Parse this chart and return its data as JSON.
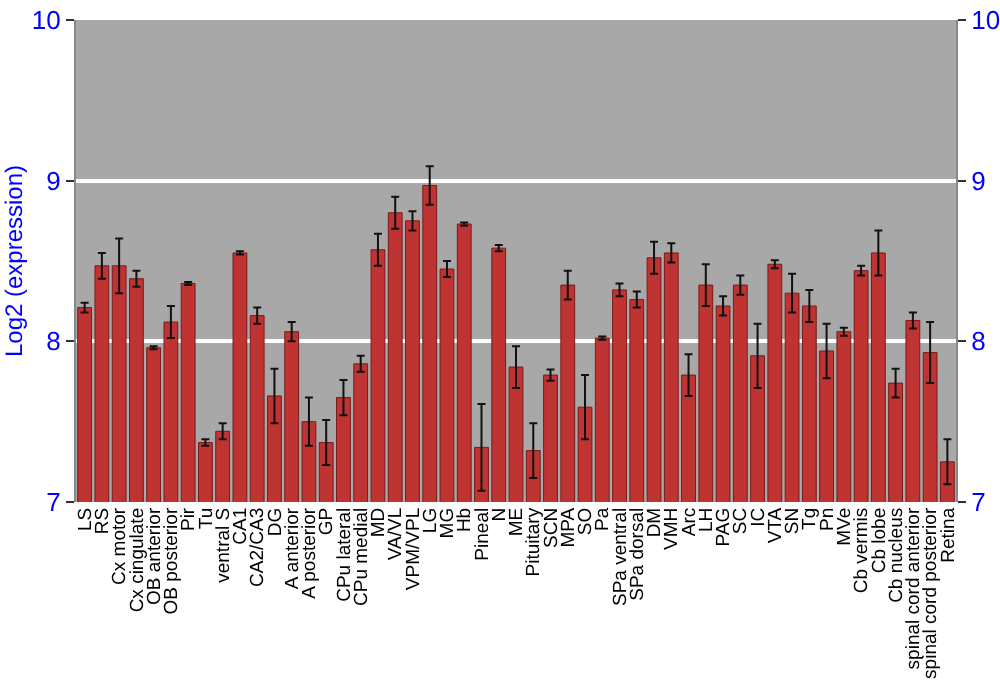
{
  "chart_data": {
    "type": "bar",
    "ylabel": "Log2 (expression)",
    "categories": [
      "LS",
      "RS",
      "Cx motor",
      "Cx cingulate",
      "OB anterior",
      "OB posterior",
      "Pir",
      "Tu",
      "ventral S",
      "CA1",
      "CA2/CA3",
      "DG",
      "A anterior",
      "A posterior",
      "GP",
      "CPu lateral",
      "CPu medial",
      "MD",
      "VA/VL",
      "VPM/VPL",
      "LG",
      "MG",
      "Hb",
      "Pineal",
      "N",
      "ME",
      "Pituitary",
      "SCN",
      "MPA",
      "SO",
      "Pa",
      "SPa ventral",
      "SPa dorsal",
      "DM",
      "VMH",
      "Arc",
      "LH",
      "PAG",
      "SC",
      "IC",
      "VTA",
      "SN",
      "Tg",
      "Pn",
      "MVe",
      "Cb vermis",
      "Cb lobe",
      "Cb nucleus",
      "spinal cord anterior",
      "spinal cord posterior",
      "Retina"
    ],
    "series": [
      {
        "color": "#c03333",
        "values": [
          8.21,
          8.47,
          8.47,
          8.39,
          7.96,
          8.12,
          8.36,
          7.37,
          7.44,
          8.55,
          8.16,
          7.66,
          8.06,
          7.5,
          7.37,
          7.65,
          7.86,
          8.57,
          8.8,
          8.75,
          8.97,
          8.45,
          8.73,
          7.34,
          8.58,
          7.84,
          7.32,
          7.79,
          8.35,
          7.59,
          8.02,
          8.32,
          8.26,
          8.52,
          8.55,
          7.79,
          8.35,
          8.22,
          8.35,
          7.91,
          8.48,
          8.3,
          8.22,
          7.94,
          8.06,
          8.44,
          8.55,
          7.74,
          8.13,
          7.93,
          7.25
        ],
        "errors": [
          0.03,
          0.08,
          0.17,
          0.05,
          0.01,
          0.1,
          0.01,
          0.02,
          0.05,
          0.01,
          0.05,
          0.17,
          0.06,
          0.15,
          0.14,
          0.11,
          0.05,
          0.1,
          0.1,
          0.06,
          0.12,
          0.05,
          0.01,
          0.27,
          0.02,
          0.13,
          0.17,
          0.035,
          0.09,
          0.2,
          0.01,
          0.04,
          0.05,
          0.1,
          0.06,
          0.13,
          0.13,
          0.06,
          0.06,
          0.2,
          0.025,
          0.12,
          0.1,
          0.17,
          0.025,
          0.03,
          0.14,
          0.09,
          0.05,
          0.19,
          0.14
        ]
      }
    ],
    "ylim": [
      7,
      10
    ],
    "yticks": [
      7,
      8,
      9,
      10
    ],
    "y2lim": [
      7,
      10
    ],
    "y2ticks": [
      7,
      8,
      9,
      10
    ],
    "grid": "y"
  }
}
